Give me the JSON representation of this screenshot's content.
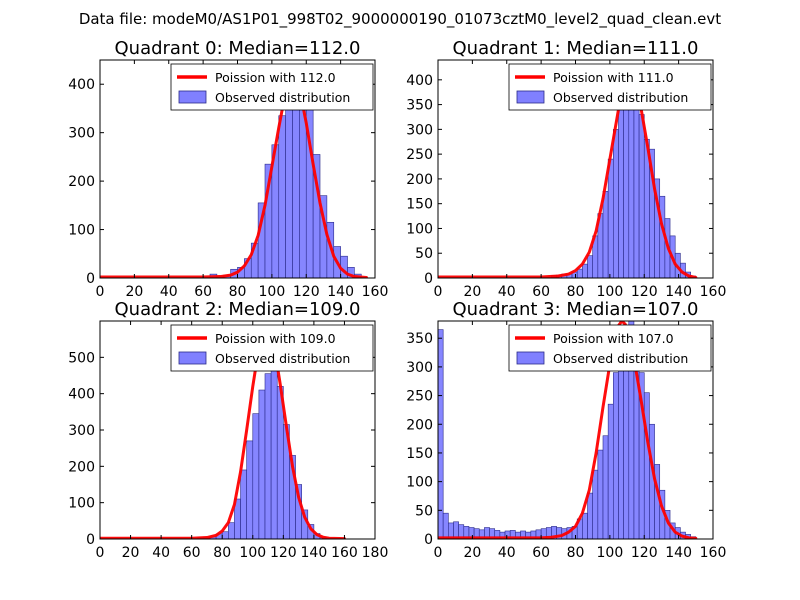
{
  "figure": {
    "suptitle": "Data file: modeM0/AS1P01_998T02_9000000190_01073cztM0_level2_quad_clean.evt"
  },
  "colors": {
    "bars_fill": "#8080ff",
    "bars_edge": "#2a2a8a",
    "curve": "#ff0000",
    "axes": "#000000"
  },
  "chart_data": [
    {
      "type": "bar",
      "title": "Quadrant 0: Median=112.0",
      "xlim": [
        0,
        160
      ],
      "ylim": [
        0,
        450
      ],
      "xticks": [
        0,
        20,
        40,
        60,
        80,
        100,
        120,
        140,
        160
      ],
      "yticks": [
        0,
        100,
        200,
        300,
        400
      ],
      "legend": {
        "position": "top-right",
        "entries": [
          "Poission with 112.0",
          "Observed distribution"
        ]
      },
      "series": [
        {
          "name": "Observed distribution",
          "kind": "hist",
          "bin_width": 4,
          "bins": [
            [
              64,
              8
            ],
            [
              68,
              4
            ],
            [
              72,
              6
            ],
            [
              76,
              18
            ],
            [
              80,
              22
            ],
            [
              84,
              40
            ],
            [
              88,
              72
            ],
            [
              92,
              155
            ],
            [
              96,
              235
            ],
            [
              100,
              275
            ],
            [
              104,
              335
            ],
            [
              108,
              390
            ],
            [
              112,
              410
            ],
            [
              116,
              420
            ],
            [
              120,
              360
            ],
            [
              124,
              255
            ],
            [
              128,
              170
            ],
            [
              132,
              115
            ],
            [
              136,
              65
            ],
            [
              140,
              45
            ],
            [
              144,
              22
            ],
            [
              148,
              8
            ]
          ]
        },
        {
          "name": "Poission with 112.0",
          "kind": "line",
          "points": [
            [
              0,
              2
            ],
            [
              10,
              2
            ],
            [
              20,
              2
            ],
            [
              30,
              2
            ],
            [
              40,
              2
            ],
            [
              50,
              2
            ],
            [
              60,
              2
            ],
            [
              70,
              3
            ],
            [
              76,
              6
            ],
            [
              80,
              12
            ],
            [
              84,
              25
            ],
            [
              88,
              48
            ],
            [
              92,
              88
            ],
            [
              96,
              150
            ],
            [
              100,
              230
            ],
            [
              104,
              310
            ],
            [
              108,
              385
            ],
            [
              110,
              418
            ],
            [
              112,
              430
            ],
            [
              114,
              422
            ],
            [
              116,
              392
            ],
            [
              120,
              320
            ],
            [
              124,
              235
            ],
            [
              128,
              155
            ],
            [
              132,
              90
            ],
            [
              136,
              45
            ],
            [
              140,
              20
            ],
            [
              144,
              8
            ],
            [
              148,
              3
            ],
            [
              155,
              1
            ]
          ]
        }
      ]
    },
    {
      "type": "bar",
      "title": "Quadrant 1: Median=111.0",
      "xlim": [
        0,
        160
      ],
      "ylim": [
        0,
        440
      ],
      "xticks": [
        0,
        20,
        40,
        60,
        80,
        100,
        120,
        140,
        160
      ],
      "yticks": [
        0,
        50,
        100,
        150,
        200,
        250,
        300,
        350,
        400
      ],
      "legend": {
        "position": "top-right",
        "entries": [
          "Poission with 111.0",
          "Observed distribution"
        ]
      },
      "series": [
        {
          "name": "Observed distribution",
          "kind": "hist",
          "bin_width": 3,
          "bins": [
            [
              66,
              5
            ],
            [
              69,
              6
            ],
            [
              72,
              8
            ],
            [
              75,
              8
            ],
            [
              78,
              12
            ],
            [
              81,
              18
            ],
            [
              84,
              28
            ],
            [
              87,
              45
            ],
            [
              90,
              85
            ],
            [
              93,
              130
            ],
            [
              96,
              175
            ],
            [
              99,
              240
            ],
            [
              102,
              300
            ],
            [
              105,
              360
            ],
            [
              108,
              385
            ],
            [
              111,
              400
            ],
            [
              114,
              370
            ],
            [
              117,
              330
            ],
            [
              120,
              280
            ],
            [
              123,
              260
            ],
            [
              126,
              200
            ],
            [
              129,
              165
            ],
            [
              132,
              120
            ],
            [
              135,
              85
            ],
            [
              138,
              50
            ],
            [
              141,
              30
            ],
            [
              144,
              12
            ],
            [
              147,
              4
            ]
          ]
        },
        {
          "name": "Poission with 111.0",
          "kind": "line",
          "points": [
            [
              0,
              2
            ],
            [
              10,
              2
            ],
            [
              20,
              2
            ],
            [
              30,
              2
            ],
            [
              40,
              2
            ],
            [
              50,
              2
            ],
            [
              60,
              2
            ],
            [
              70,
              4
            ],
            [
              76,
              8
            ],
            [
              80,
              15
            ],
            [
              84,
              28
            ],
            [
              88,
              52
            ],
            [
              92,
              95
            ],
            [
              96,
              160
            ],
            [
              100,
              240
            ],
            [
              104,
              320
            ],
            [
              107,
              380
            ],
            [
              109,
              412
            ],
            [
              111,
              428
            ],
            [
              113,
              420
            ],
            [
              115,
              395
            ],
            [
              118,
              345
            ],
            [
              122,
              265
            ],
            [
              126,
              180
            ],
            [
              130,
              110
            ],
            [
              134,
              60
            ],
            [
              138,
              28
            ],
            [
              142,
              12
            ],
            [
              146,
              4
            ],
            [
              150,
              1
            ]
          ]
        }
      ]
    },
    {
      "type": "bar",
      "title": "Quadrant 2: Median=109.0",
      "xlim": [
        0,
        180
      ],
      "ylim": [
        0,
        600
      ],
      "xticks": [
        0,
        20,
        40,
        60,
        80,
        100,
        120,
        140,
        160,
        180
      ],
      "yticks": [
        0,
        100,
        200,
        300,
        400,
        500
      ],
      "legend": {
        "position": "top-right",
        "entries": [
          "Poission with 109.0",
          "Observed distribution"
        ]
      },
      "series": [
        {
          "name": "Observed distribution",
          "kind": "hist",
          "bin_width": 4,
          "bins": [
            [
              64,
              4
            ],
            [
              68,
              4
            ],
            [
              72,
              6
            ],
            [
              76,
              14
            ],
            [
              80,
              20
            ],
            [
              84,
              45
            ],
            [
              88,
              110
            ],
            [
              92,
              190
            ],
            [
              96,
              270
            ],
            [
              100,
              345
            ],
            [
              104,
              410
            ],
            [
              108,
              455
            ],
            [
              112,
              470
            ],
            [
              116,
              420
            ],
            [
              120,
              315
            ],
            [
              124,
              230
            ],
            [
              128,
              150
            ],
            [
              132,
              80
            ],
            [
              136,
              40
            ],
            [
              140,
              15
            ],
            [
              144,
              5
            ]
          ]
        },
        {
          "name": "Poission with 109.0",
          "kind": "line",
          "points": [
            [
              0,
              2
            ],
            [
              20,
              2
            ],
            [
              40,
              2
            ],
            [
              60,
              2
            ],
            [
              70,
              4
            ],
            [
              76,
              10
            ],
            [
              80,
              22
            ],
            [
              84,
              45
            ],
            [
              88,
              95
            ],
            [
              92,
              185
            ],
            [
              96,
              300
            ],
            [
              100,
              420
            ],
            [
              103,
              500
            ],
            [
              106,
              555
            ],
            [
              109,
              575
            ],
            [
              112,
              560
            ],
            [
              115,
              505
            ],
            [
              118,
              425
            ],
            [
              122,
              310
            ],
            [
              126,
              200
            ],
            [
              130,
              115
            ],
            [
              134,
              60
            ],
            [
              138,
              28
            ],
            [
              142,
              12
            ],
            [
              146,
              5
            ],
            [
              150,
              2
            ],
            [
              160,
              1
            ]
          ]
        }
      ]
    },
    {
      "type": "bar",
      "title": "Quadrant 3: Median=107.0",
      "xlim": [
        0,
        160
      ],
      "ylim": [
        0,
        380
      ],
      "xticks": [
        0,
        20,
        40,
        60,
        80,
        100,
        120,
        140,
        160
      ],
      "yticks": [
        0,
        50,
        100,
        150,
        200,
        250,
        300,
        350
      ],
      "legend": {
        "position": "top-right",
        "entries": [
          "Poission with 107.0",
          "Observed distribution"
        ]
      },
      "series": [
        {
          "name": "Observed distribution",
          "kind": "hist",
          "bin_width": 3,
          "bins": [
            [
              0,
              365
            ],
            [
              3,
              45
            ],
            [
              6,
              28
            ],
            [
              9,
              30
            ],
            [
              12,
              25
            ],
            [
              15,
              22
            ],
            [
              18,
              20
            ],
            [
              21,
              18
            ],
            [
              24,
              16
            ],
            [
              27,
              20
            ],
            [
              30,
              18
            ],
            [
              33,
              15
            ],
            [
              36,
              12
            ],
            [
              39,
              14
            ],
            [
              42,
              15
            ],
            [
              45,
              12
            ],
            [
              48,
              14
            ],
            [
              51,
              12
            ],
            [
              54,
              14
            ],
            [
              57,
              16
            ],
            [
              60,
              18
            ],
            [
              63,
              20
            ],
            [
              66,
              22
            ],
            [
              69,
              20
            ],
            [
              72,
              18
            ],
            [
              75,
              20
            ],
            [
              78,
              22
            ],
            [
              81,
              35
            ],
            [
              84,
              45
            ],
            [
              87,
              80
            ],
            [
              90,
              120
            ],
            [
              93,
              155
            ],
            [
              96,
              180
            ],
            [
              99,
              235
            ],
            [
              102,
              290
            ],
            [
              105,
              330
            ],
            [
              108,
              370
            ],
            [
              111,
              380
            ],
            [
              114,
              340
            ],
            [
              117,
              290
            ],
            [
              120,
              255
            ],
            [
              123,
              200
            ],
            [
              126,
              130
            ],
            [
              129,
              85
            ],
            [
              132,
              50
            ],
            [
              135,
              28
            ],
            [
              138,
              20
            ],
            [
              141,
              12
            ],
            [
              144,
              8
            ],
            [
              147,
              4
            ]
          ]
        },
        {
          "name": "Poission with 107.0",
          "kind": "line",
          "points": [
            [
              0,
              2
            ],
            [
              20,
              2
            ],
            [
              40,
              2
            ],
            [
              60,
              2
            ],
            [
              66,
              3
            ],
            [
              72,
              6
            ],
            [
              76,
              12
            ],
            [
              80,
              22
            ],
            [
              84,
              45
            ],
            [
              88,
              85
            ],
            [
              92,
              150
            ],
            [
              96,
              230
            ],
            [
              100,
              305
            ],
            [
              103,
              350
            ],
            [
              105,
              372
            ],
            [
              107,
              380
            ],
            [
              109,
              374
            ],
            [
              111,
              355
            ],
            [
              114,
              315
            ],
            [
              118,
              245
            ],
            [
              122,
              170
            ],
            [
              126,
              105
            ],
            [
              130,
              58
            ],
            [
              134,
              28
            ],
            [
              138,
              12
            ],
            [
              142,
              5
            ],
            [
              146,
              2
            ],
            [
              150,
              1
            ]
          ]
        }
      ]
    }
  ]
}
